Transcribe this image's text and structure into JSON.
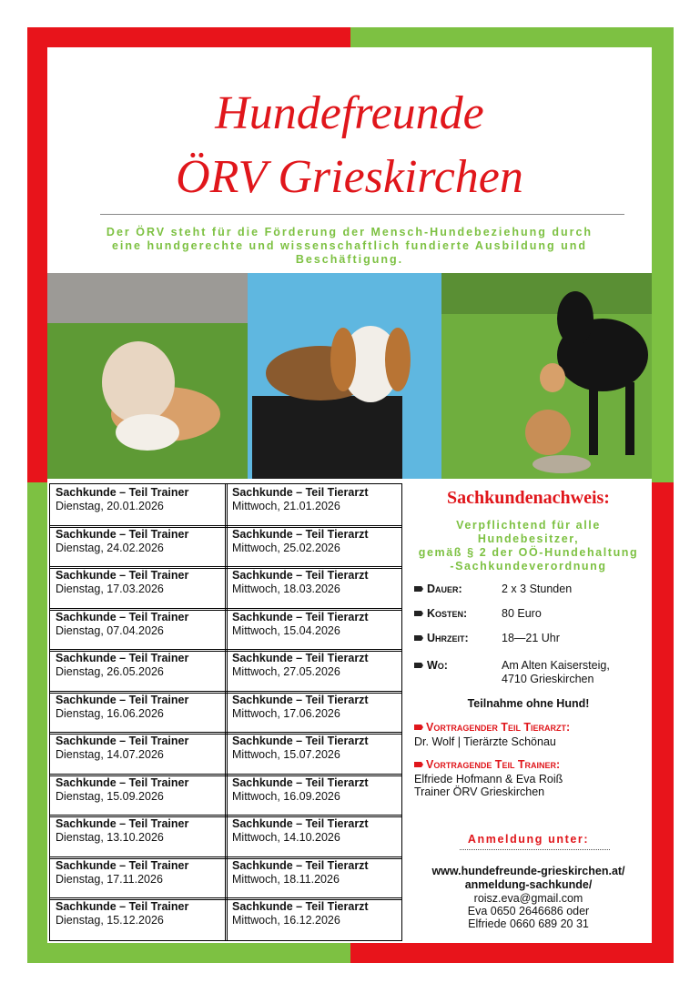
{
  "header": {
    "title_lines": [
      "Hundefreunde",
      "ÖRV Grieskirchen"
    ],
    "subtitle_lines": [
      "Der ÖRV steht für die Förderung der Mensch-Hundebeziehung durch",
      "eine hundgerechte und wissenschaftlich fundierte Ausbildung und",
      "Beschäftigung."
    ]
  },
  "table": {
    "rows": [
      [
        [
          "Sachkunde – Teil Trainer",
          "Dienstag, 20.01.2026"
        ],
        [
          "Sachkunde – Teil Tierarzt",
          "Mittwoch, 21.01.2026"
        ]
      ],
      [
        [
          "Sachkunde – Teil Trainer",
          "Dienstag, 24.02.2026"
        ],
        [
          "Sachkunde – Teil Tierarzt",
          "Mittwoch, 25.02.2026"
        ]
      ],
      [
        [
          "Sachkunde – Teil Trainer",
          "Dienstag, 17.03.2026"
        ],
        [
          "Sachkunde – Teil Tierarzt",
          "Mittwoch, 18.03.2026"
        ]
      ],
      [
        [
          "Sachkunde – Teil Trainer",
          "Dienstag, 07.04.2026"
        ],
        [
          "Sachkunde – Teil Tierarzt",
          "Mittwoch, 15.04.2026"
        ]
      ],
      [
        [
          "Sachkunde – Teil Trainer",
          "Dienstag, 26.05.2026"
        ],
        [
          "Sachkunde – Teil Tierarzt",
          "Mittwoch, 27.05.2026"
        ]
      ],
      [
        [
          "Sachkunde – Teil Trainer",
          "Dienstag, 16.06.2026"
        ],
        [
          "Sachkunde – Teil Tierarzt",
          "Mittwoch, 17.06.2026"
        ]
      ],
      [
        [
          "Sachkunde – Teil Trainer",
          "Dienstag, 14.07.2026"
        ],
        [
          "Sachkunde – Teil Tierarzt",
          "Mittwoch, 15.07.2026"
        ]
      ],
      [
        [
          "Sachkunde – Teil Trainer",
          "Dienstag, 15.09.2026"
        ],
        [
          "Sachkunde – Teil Tierarzt",
          "Mittwoch, 16.09.2026"
        ]
      ],
      [
        [
          "Sachkunde – Teil Trainer",
          "Dienstag, 13.10.2026"
        ],
        [
          "Sachkunde – Teil Tierarzt",
          "Mittwoch, 14.10.2026"
        ]
      ],
      [
        [
          "Sachkunde – Teil Trainer",
          "Dienstag, 17.11.2026"
        ],
        [
          "Sachkunde – Teil Tierarzt",
          "Mittwoch, 18.11.2026"
        ]
      ],
      [
        [
          "Sachkunde – Teil Trainer",
          "Dienstag, 15.12.2026"
        ],
        [
          "Sachkunde – Teil Tierarzt",
          "Mittwoch, 16.12.2026"
        ]
      ]
    ]
  },
  "info": {
    "heading": "Sachkundenachweis:",
    "subheading_lines": [
      "Verpflichtend für alle",
      "Hundebesitzer,",
      "gemäß § 2 der OÖ-Hundehaltung",
      "-Sachkundeverordnung"
    ],
    "details": [
      {
        "label": "Dauer:",
        "value_lines": [
          "2 x 3 Stunden"
        ]
      },
      {
        "label": "Kosten:",
        "value_lines": [
          "80 Euro"
        ]
      },
      {
        "label": "Uhrzeit:",
        "value_lines": [
          "18—21 Uhr"
        ]
      },
      {
        "label": "Wo:",
        "value_lines": [
          "Am Alten Kaisersteig,",
          "4710 Grieskirchen"
        ]
      }
    ],
    "note": "Teilnahme ohne Hund!",
    "vet": {
      "label": "Vortragender Teil Tierarzt:",
      "lines": [
        "Dr. Wolf | Tierärzte Schönau"
      ]
    },
    "trainer": {
      "label": "Vortragende Teil Trainer:",
      "lines": [
        "Elfriede Hofmann & Eva Roiß",
        "Trainer ÖRV Grieskirchen"
      ]
    },
    "registration": {
      "label": "Anmeldung unter:",
      "url_lines": [
        "www.hundefreunde-grieskirchen.at/",
        "anmeldung-sachkunde/"
      ],
      "contact_lines": [
        "roisz.eva@gmail.com",
        "Eva 0650 2646686  oder",
        "Elfriede 0660 689 20 31"
      ]
    }
  }
}
